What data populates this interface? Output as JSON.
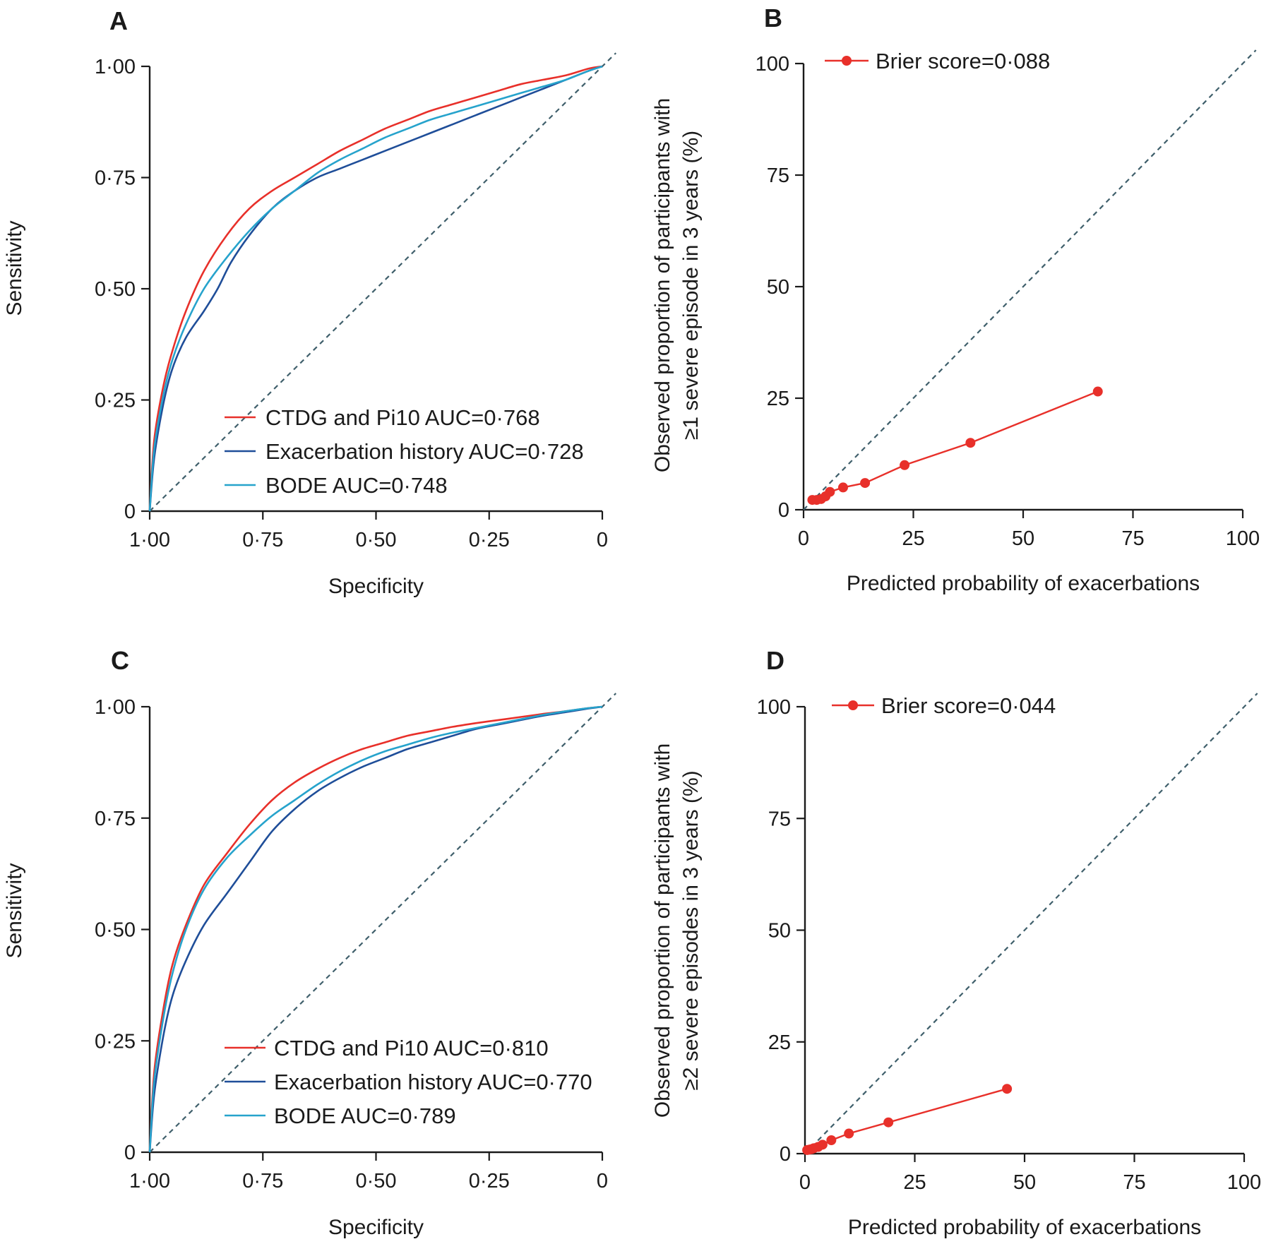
{
  "colors": {
    "ctdg": "#e8302a",
    "exacerbation": "#1f4e99",
    "bode": "#26a3cc",
    "calibration": "#e8302a",
    "reference": "#3f5f6b",
    "axis": "#1a1a1a"
  },
  "chart_data": [
    {
      "id": "A",
      "type": "line",
      "panel_label": "A",
      "xlabel": "Specificity",
      "ylabel": "Sensitivity",
      "x_reversed": true,
      "xlim": [
        1.0,
        0.0
      ],
      "ylim": [
        0.0,
        1.0
      ],
      "x_ticks": [
        1.0,
        0.75,
        0.5,
        0.25,
        0.0
      ],
      "x_tick_labels": [
        "1·00",
        "0·75",
        "0·50",
        "0·25",
        "0"
      ],
      "y_ticks": [
        0.0,
        0.25,
        0.5,
        0.75,
        1.0
      ],
      "y_tick_labels": [
        "0",
        "0·25",
        "0·50",
        "0·75",
        "1·00"
      ],
      "reference_line": "diagonal",
      "legend_position": "bottom-right",
      "series": [
        {
          "name": "CTDG and Pi10 AUC=0·768",
          "color_key": "ctdg",
          "x": [
            1.0,
            0.99,
            0.97,
            0.95,
            0.92,
            0.88,
            0.83,
            0.78,
            0.73,
            0.68,
            0.63,
            0.58,
            0.53,
            0.48,
            0.43,
            0.38,
            0.33,
            0.28,
            0.23,
            0.18,
            0.13,
            0.08,
            0.03,
            0.0
          ],
          "y": [
            0.0,
            0.16,
            0.28,
            0.36,
            0.45,
            0.54,
            0.62,
            0.68,
            0.72,
            0.75,
            0.78,
            0.81,
            0.835,
            0.86,
            0.88,
            0.9,
            0.915,
            0.93,
            0.945,
            0.96,
            0.97,
            0.98,
            0.995,
            1.0
          ]
        },
        {
          "name": "Exacerbation history AUC=0·728",
          "color_key": "exacerbation",
          "x": [
            1.0,
            0.99,
            0.97,
            0.95,
            0.92,
            0.88,
            0.85,
            0.82,
            0.78,
            0.73,
            0.68,
            0.63,
            0.58,
            0.53,
            0.48,
            0.43,
            0.38,
            0.33,
            0.28,
            0.23,
            0.18,
            0.13,
            0.08,
            0.03,
            0.0
          ],
          "y": [
            0.0,
            0.12,
            0.24,
            0.32,
            0.39,
            0.45,
            0.5,
            0.56,
            0.62,
            0.68,
            0.72,
            0.75,
            0.77,
            0.79,
            0.81,
            0.83,
            0.85,
            0.87,
            0.89,
            0.91,
            0.93,
            0.95,
            0.97,
            0.99,
            1.0
          ]
        },
        {
          "name": "BODE AUC=0·748",
          "color_key": "bode",
          "x": [
            1.0,
            0.99,
            0.97,
            0.95,
            0.92,
            0.88,
            0.83,
            0.78,
            0.73,
            0.68,
            0.63,
            0.58,
            0.53,
            0.48,
            0.43,
            0.38,
            0.33,
            0.28,
            0.23,
            0.18,
            0.13,
            0.08,
            0.03,
            0.0
          ],
          "y": [
            0.0,
            0.14,
            0.26,
            0.34,
            0.42,
            0.5,
            0.57,
            0.63,
            0.68,
            0.72,
            0.76,
            0.79,
            0.815,
            0.84,
            0.86,
            0.88,
            0.895,
            0.91,
            0.925,
            0.94,
            0.955,
            0.97,
            0.99,
            1.0
          ]
        }
      ]
    },
    {
      "id": "B",
      "type": "scatter",
      "panel_label": "B",
      "xlabel": "Predicted probability of exacerbations",
      "ylabel": [
        "Observed proportion of participants with",
        "≥1 severe episode in 3 years (%)"
      ],
      "xlim": [
        0,
        100
      ],
      "ylim": [
        0,
        100
      ],
      "x_ticks": [
        0,
        25,
        50,
        75,
        100
      ],
      "x_tick_labels": [
        "0",
        "25",
        "50",
        "75",
        "100"
      ],
      "y_ticks": [
        0,
        25,
        50,
        75,
        100
      ],
      "y_tick_labels": [
        "0",
        "25",
        "50",
        "75",
        "100"
      ],
      "reference_line": "diagonal",
      "legend_position": "top-left",
      "series": [
        {
          "name": "Brier score=0·088",
          "color_key": "calibration",
          "x": [
            2,
            3,
            4,
            5,
            6,
            9,
            14,
            23,
            38,
            67
          ],
          "y": [
            2.2,
            2.2,
            2.4,
            3.0,
            4.0,
            5.0,
            6.0,
            10.0,
            15.0,
            26.5
          ]
        }
      ]
    },
    {
      "id": "C",
      "type": "line",
      "panel_label": "C",
      "xlabel": "Specificity",
      "ylabel": "Sensitivity",
      "x_reversed": true,
      "xlim": [
        1.0,
        0.0
      ],
      "ylim": [
        0.0,
        1.0
      ],
      "x_ticks": [
        1.0,
        0.75,
        0.5,
        0.25,
        0.0
      ],
      "x_tick_labels": [
        "1·00",
        "0·75",
        "0·50",
        "0·25",
        "0"
      ],
      "y_ticks": [
        0.0,
        0.25,
        0.5,
        0.75,
        1.0
      ],
      "y_tick_labels": [
        "0",
        "0·25",
        "0·50",
        "0·75",
        "1·00"
      ],
      "reference_line": "diagonal",
      "legend_position": "bottom-right",
      "series": [
        {
          "name": "CTDG and Pi10 AUC=0·810",
          "color_key": "ctdg",
          "x": [
            1.0,
            0.99,
            0.97,
            0.95,
            0.92,
            0.88,
            0.83,
            0.78,
            0.73,
            0.68,
            0.63,
            0.58,
            0.53,
            0.48,
            0.43,
            0.38,
            0.33,
            0.28,
            0.23,
            0.18,
            0.13,
            0.08,
            0.03,
            0.0
          ],
          "y": [
            0.0,
            0.18,
            0.32,
            0.42,
            0.51,
            0.6,
            0.67,
            0.735,
            0.79,
            0.83,
            0.86,
            0.885,
            0.905,
            0.92,
            0.935,
            0.945,
            0.955,
            0.963,
            0.97,
            0.977,
            0.984,
            0.99,
            0.997,
            1.0
          ]
        },
        {
          "name": "Exacerbation history AUC=0·770",
          "color_key": "exacerbation",
          "x": [
            1.0,
            0.99,
            0.97,
            0.95,
            0.92,
            0.88,
            0.83,
            0.78,
            0.73,
            0.68,
            0.63,
            0.58,
            0.53,
            0.48,
            0.43,
            0.38,
            0.33,
            0.28,
            0.23,
            0.18,
            0.13,
            0.08,
            0.03,
            0.0
          ],
          "y": [
            0.0,
            0.13,
            0.26,
            0.35,
            0.43,
            0.51,
            0.58,
            0.65,
            0.72,
            0.77,
            0.81,
            0.84,
            0.865,
            0.885,
            0.905,
            0.92,
            0.935,
            0.95,
            0.96,
            0.97,
            0.98,
            0.988,
            0.996,
            1.0
          ]
        },
        {
          "name": "BODE AUC=0·789",
          "color_key": "bode",
          "x": [
            1.0,
            0.99,
            0.97,
            0.95,
            0.92,
            0.88,
            0.83,
            0.78,
            0.73,
            0.68,
            0.63,
            0.58,
            0.53,
            0.48,
            0.43,
            0.38,
            0.33,
            0.28,
            0.23,
            0.18,
            0.13,
            0.08,
            0.03,
            0.0
          ],
          "y": [
            0.0,
            0.16,
            0.3,
            0.4,
            0.5,
            0.59,
            0.66,
            0.71,
            0.755,
            0.79,
            0.825,
            0.855,
            0.88,
            0.9,
            0.915,
            0.93,
            0.942,
            0.952,
            0.962,
            0.972,
            0.982,
            0.99,
            0.997,
            1.0
          ]
        }
      ]
    },
    {
      "id": "D",
      "type": "scatter",
      "panel_label": "D",
      "xlabel": "Predicted probability of exacerbations",
      "ylabel": [
        "Observed proportion of participants with",
        "≥2 severe episodes in 3 years (%)"
      ],
      "xlim": [
        0,
        100
      ],
      "ylim": [
        0,
        100
      ],
      "x_ticks": [
        0,
        25,
        50,
        75,
        100
      ],
      "x_tick_labels": [
        "0",
        "25",
        "50",
        "75",
        "100"
      ],
      "y_ticks": [
        0,
        25,
        50,
        75,
        100
      ],
      "y_tick_labels": [
        "0",
        "25",
        "50",
        "75",
        "100"
      ],
      "reference_line": "diagonal",
      "legend_position": "top-left",
      "series": [
        {
          "name": "Brier score=0·044",
          "color_key": "calibration",
          "x": [
            0.5,
            1,
            1.5,
            2,
            3,
            4,
            6,
            10,
            19,
            46
          ],
          "y": [
            0.8,
            0.9,
            1.0,
            1.2,
            1.5,
            2.0,
            3.0,
            4.5,
            7.0,
            14.5
          ]
        }
      ]
    }
  ]
}
